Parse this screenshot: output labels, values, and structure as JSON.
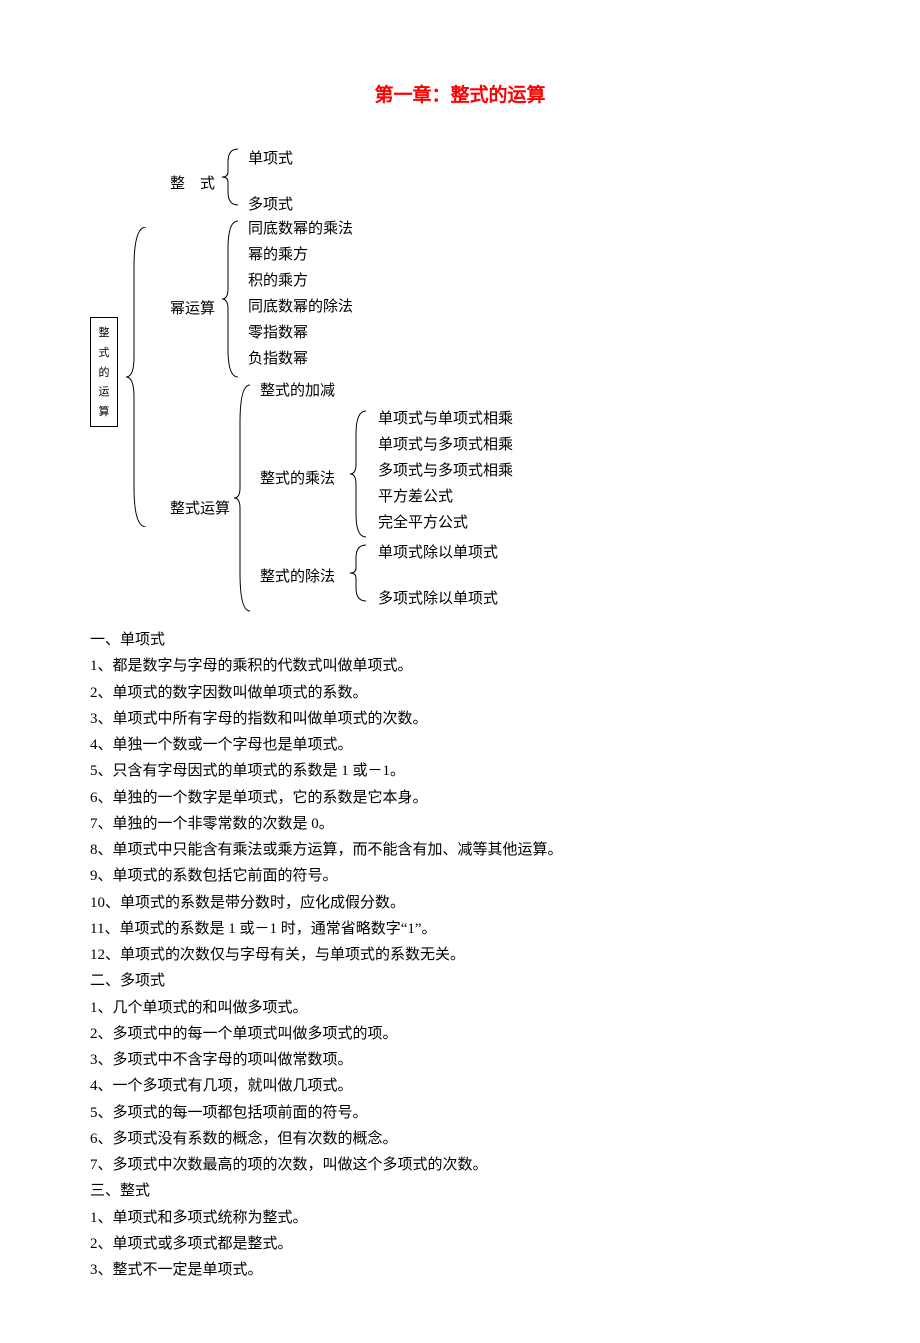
{
  "title": "第一章：整式的运算",
  "tree": {
    "root_label": "整式的运算",
    "level1": {
      "a": "整　式",
      "b": "幂运算",
      "c": "整式运算"
    },
    "l1a_children": [
      "单项式",
      "多项式"
    ],
    "l1b_children": [
      "同底数幂的乘法",
      "幂的乘方",
      "积的乘方",
      "同底数幂的除法",
      "零指数幂",
      "负指数幂"
    ],
    "l1c_children": {
      "a": "整式的加减",
      "b": "整式的乘法",
      "c": "整式的除法"
    },
    "l1c_b_children": [
      "单项式与单项式相乘",
      "单项式与多项式相乘",
      "多项式与多项式相乘",
      "平方差公式",
      "完全平方公式"
    ],
    "l1c_c_children": [
      "单项式除以单项式",
      "多项式除以单项式"
    ]
  },
  "sections": [
    {
      "heading": "一、单项式",
      "items": [
        "1、都是数字与字母的乘积的代数式叫做单项式。",
        "2、单项式的数字因数叫做单项式的系数。",
        "3、单项式中所有字母的指数和叫做单项式的次数。",
        "4、单独一个数或一个字母也是单项式。",
        "5、只含有字母因式的单项式的系数是 1 或－1。",
        "6、单独的一个数字是单项式，它的系数是它本身。",
        "7、单独的一个非零常数的次数是 0。",
        "8、单项式中只能含有乘法或乘方运算，而不能含有加、减等其他运算。",
        "9、单项式的系数包括它前面的符号。",
        "10、单项式的系数是带分数时，应化成假分数。",
        "11、单项式的系数是 1 或－1 时，通常省略数字“1”。",
        "12、单项式的次数仅与字母有关，与单项式的系数无关。"
      ]
    },
    {
      "heading": "二、多项式",
      "items": [
        "1、几个单项式的和叫做多项式。",
        "2、多项式中的每一个单项式叫做多项式的项。",
        "3、多项式中不含字母的项叫做常数项。",
        "4、一个多项式有几项，就叫做几项式。",
        "5、多项式的每一项都包括项前面的符号。",
        "6、多项式没有系数的概念，但有次数的概念。",
        "7、多项式中次数最高的项的次数，叫做这个多项式的次数。"
      ]
    },
    {
      "heading": "三、整式",
      "items": [
        "1、单项式和多项式统称为整式。",
        "2、单项式或多项式都是整式。",
        "3、整式不一定是单项式。"
      ]
    }
  ]
}
